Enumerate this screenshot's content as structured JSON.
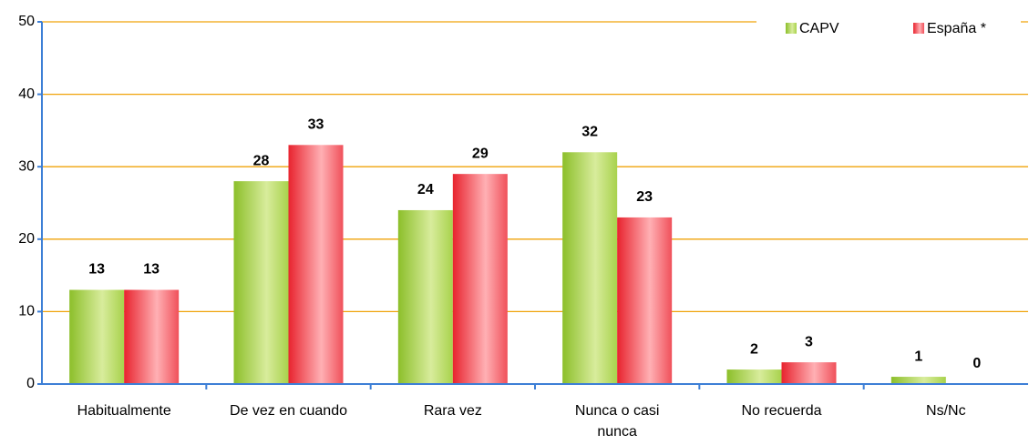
{
  "chart_data": {
    "type": "bar",
    "categories": [
      "Habitualmente",
      "De vez en cuando",
      "Rara vez",
      "Nunca o casi nunca",
      "No recuerda",
      "Ns/Nc"
    ],
    "series": [
      {
        "name": "CAPV",
        "color": "#9fcc3b",
        "values": [
          13,
          28,
          24,
          32,
          2,
          1
        ]
      },
      {
        "name": "España *",
        "color": "#ee3b45",
        "values": [
          13,
          33,
          29,
          23,
          3,
          0
        ]
      }
    ],
    "ylim": [
      0,
      50
    ],
    "yticks": [
      0,
      10,
      20,
      30,
      40,
      50
    ],
    "grid": true,
    "legend": "top-right"
  }
}
